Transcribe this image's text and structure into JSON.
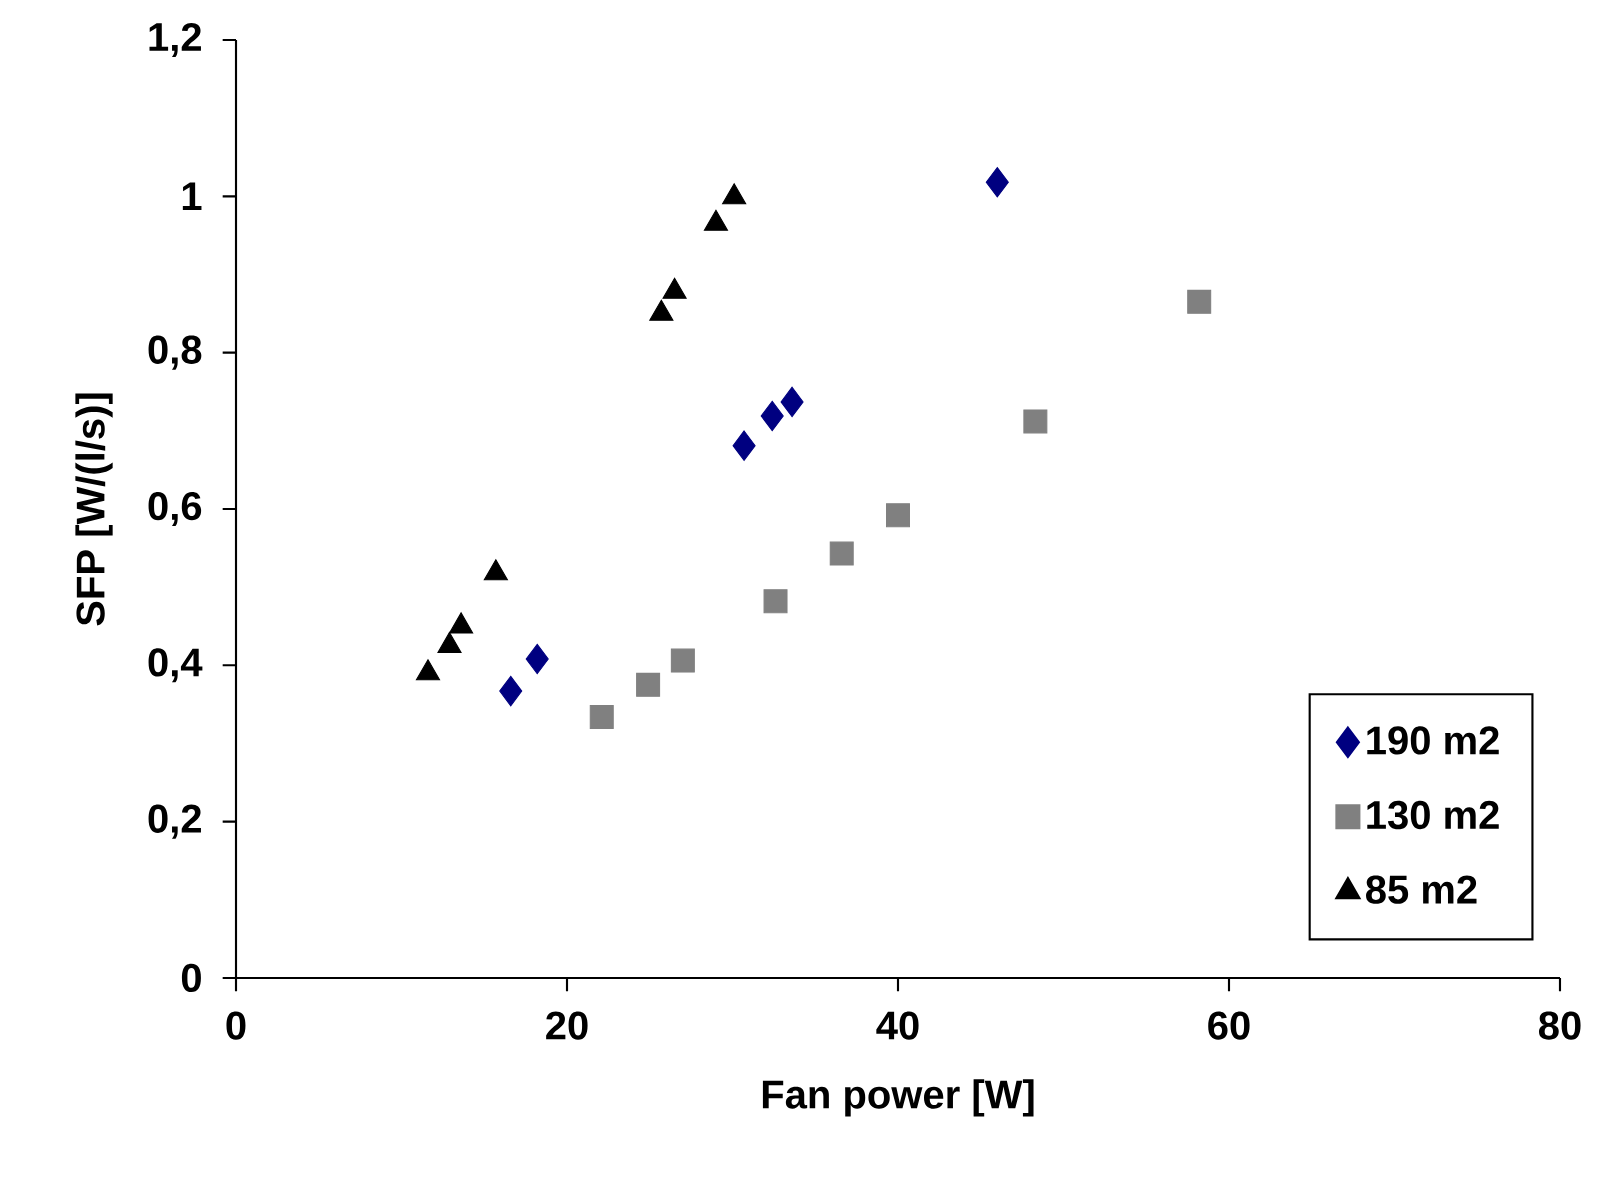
{
  "chart_data": {
    "type": "scatter",
    "xlabel": "Fan power [W]",
    "ylabel": "SFP [W/(l/s)]",
    "xlim": [
      0,
      80
    ],
    "xticks": [
      0,
      20,
      40,
      60,
      80
    ],
    "ylim": [
      0,
      1.2
    ],
    "yticks": [
      {
        "value": 0,
        "label": "0"
      },
      {
        "value": 0.2,
        "label": "0,2"
      },
      {
        "value": 0.4,
        "label": "0,4"
      },
      {
        "value": 0.6,
        "label": "0,6"
      },
      {
        "value": 0.8,
        "label": "0,8"
      },
      {
        "value": 1,
        "label": "1"
      },
      {
        "value": 1.2,
        "label": "1,2"
      }
    ],
    "grid": false,
    "legend": "bottom right",
    "series": [
      {
        "name": "190 m2",
        "color": "#000080",
        "marker": "diamond",
        "x": [
          16.6,
          18.2,
          30.7,
          32.4,
          33.6,
          46.0
        ],
        "values": [
          0.367,
          0.408,
          0.681,
          0.719,
          0.737,
          1.018
        ]
      },
      {
        "name": "130 m2",
        "color": "#808080",
        "marker": "square",
        "x": [
          22.1,
          24.9,
          27.0,
          32.6,
          36.6,
          40.0,
          48.3,
          58.2
        ],
        "values": [
          0.334,
          0.375,
          0.406,
          0.482,
          0.543,
          0.592,
          0.712,
          0.865
        ]
      },
      {
        "name": "85 m2",
        "color": "#000000",
        "marker": "triangle",
        "x": [
          11.6,
          12.9,
          13.6,
          15.7,
          25.7,
          26.5,
          29.0,
          30.1
        ],
        "values": [
          0.39,
          0.425,
          0.45,
          0.518,
          0.85,
          0.878,
          0.965,
          0.999
        ]
      }
    ]
  }
}
